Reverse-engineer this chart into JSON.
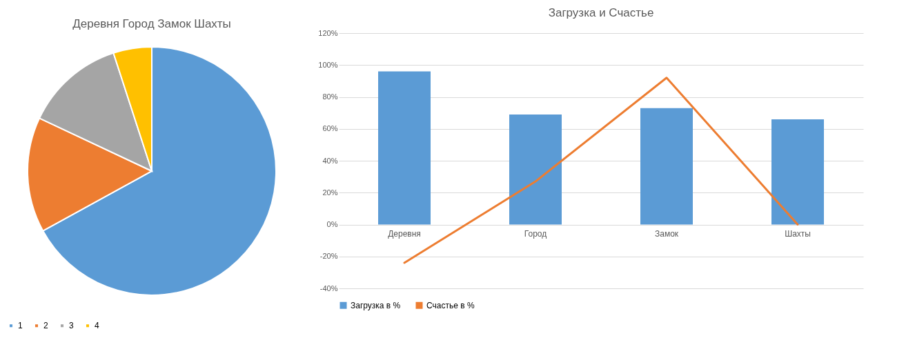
{
  "chart_data": [
    {
      "type": "pie",
      "title": "Деревня Город Замок Шахты",
      "categories": [
        "1",
        "2",
        "3",
        "4"
      ],
      "values": [
        67,
        15,
        13,
        5
      ],
      "colors": [
        "#5b9bd5",
        "#ed7d31",
        "#a5a5a5",
        "#ffc000"
      ],
      "legend": "bottom"
    },
    {
      "type": "bar",
      "title": "Загрузка и Счастье",
      "categories": [
        "Деревня",
        "Город",
        "Замок",
        "Шахты"
      ],
      "series": [
        {
          "name": "Загрузка в %",
          "color": "#5b9bd5",
          "type": "bar",
          "values": [
            96,
            69,
            73,
            66
          ]
        },
        {
          "name": "Счастье в %",
          "color": "#ed7d31",
          "type": "line",
          "values": [
            -24,
            27,
            92,
            0
          ]
        }
      ],
      "ylim": [
        -40,
        120
      ],
      "yticks": [
        {
          "value": -40,
          "label": "-40%"
        },
        {
          "value": -20,
          "label": "-20%"
        },
        {
          "value": 0,
          "label": "0%"
        },
        {
          "value": 20,
          "label": "20%"
        },
        {
          "value": 40,
          "label": "40%"
        },
        {
          "value": 60,
          "label": "60%"
        },
        {
          "value": 80,
          "label": "80%"
        },
        {
          "value": 100,
          "label": "100%"
        },
        {
          "value": 120,
          "label": "120%"
        }
      ],
      "grid": "y",
      "legend": "bottom"
    }
  ]
}
